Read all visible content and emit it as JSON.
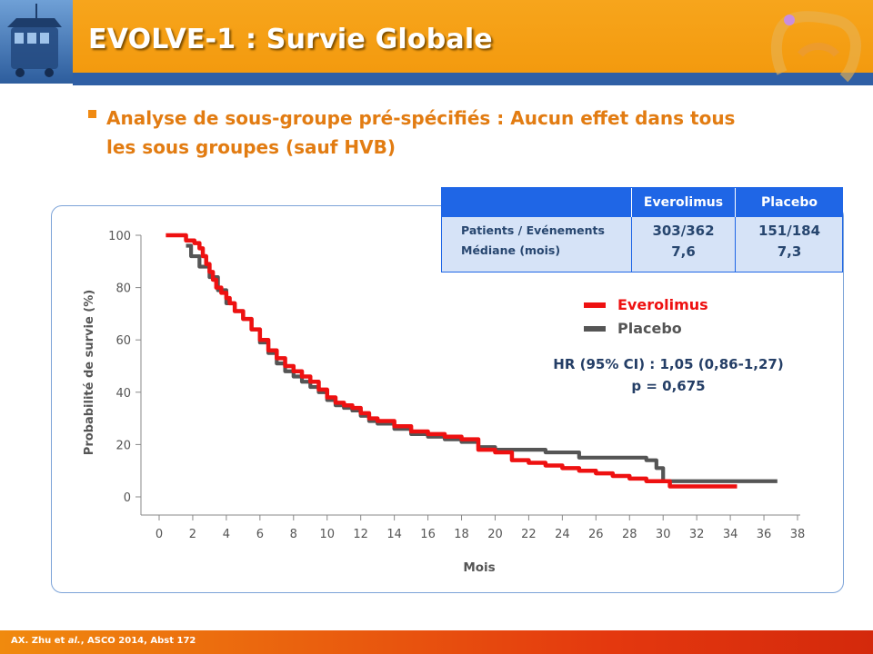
{
  "header": {
    "title": "EVOLVE-1 : Survie Globale"
  },
  "subtitle": {
    "line1": "Analyse de sous-groupe pré-spécifiés : Aucun effet dans tous",
    "line2": "les sous groupes (sauf HVB)"
  },
  "table": {
    "headers": [
      "",
      "Everolimus",
      "Placebo"
    ],
    "row_labels": [
      "Patients / Evénements",
      "Médiane (mois)"
    ],
    "everolimus": [
      "303/362",
      "7,6"
    ],
    "placebo": [
      "151/184",
      "7,3"
    ]
  },
  "legend": {
    "everolimus": "Everolimus",
    "placebo": "Placebo"
  },
  "stats": {
    "hr": "HR (95% CI) : 1,05 (0,86-1,27)",
    "p": "p = 0,675"
  },
  "footer": {
    "citation_prefix": "AX. Zhu et ",
    "citation_italic": "al.",
    "citation_suffix": ", ASCO 2014,  Abst 172"
  },
  "colors": {
    "everolimus": "#ee1111",
    "placebo": "#555555",
    "header_orange": "#f39a0e",
    "header_blue": "#2f5fa5",
    "table_header": "#1f66e6",
    "table_body": "#d6e3f7"
  },
  "chart_data": {
    "type": "line",
    "step": true,
    "xlabel": "Mois",
    "ylabel": "Probabilité de survie (%)",
    "xlim": [
      0,
      38
    ],
    "ylim": [
      0,
      100
    ],
    "xticks": [
      0,
      2,
      4,
      6,
      8,
      10,
      12,
      14,
      16,
      18,
      20,
      22,
      24,
      26,
      28,
      30,
      32,
      34,
      36,
      38
    ],
    "yticks": [
      0,
      20,
      40,
      60,
      80,
      100
    ],
    "grid": false,
    "legend_position": "right",
    "series": [
      {
        "name": "Everolimus",
        "color": "#ee1111",
        "x": [
          0.4,
          1.4,
          1.6,
          2.1,
          2.4,
          2.6,
          2.8,
          3.0,
          3.2,
          3.4,
          3.7,
          4.0,
          4.2,
          4.5,
          5.0,
          5.5,
          6.0,
          6.5,
          7.0,
          7.5,
          8.0,
          8.5,
          9.0,
          9.5,
          10.0,
          10.5,
          11.0,
          11.5,
          12.0,
          12.5,
          13.0,
          14.0,
          15.0,
          16.0,
          17.0,
          18.0,
          19.0,
          20.0,
          21.0,
          22.0,
          23.0,
          24.0,
          25.0,
          26.0,
          27.0,
          28.0,
          29.0,
          30.0,
          30.4,
          31.0,
          32.0,
          34.4
        ],
        "y": [
          100,
          100,
          98,
          97,
          95,
          92,
          89,
          86,
          83,
          80,
          78,
          76,
          74,
          71,
          68,
          64,
          60,
          56,
          53,
          50,
          48,
          46,
          44,
          41,
          38,
          36,
          35,
          34,
          32,
          30,
          29,
          27,
          25,
          24,
          23,
          22,
          18,
          17,
          14,
          13,
          12,
          11,
          10,
          9,
          8,
          7,
          6,
          6,
          4,
          4,
          4,
          4
        ]
      },
      {
        "name": "Placebo",
        "color": "#555555",
        "x": [
          1.6,
          1.9,
          2.4,
          3.0,
          3.5,
          4.0,
          4.5,
          5.0,
          5.5,
          6.0,
          6.5,
          7.0,
          7.5,
          8.0,
          8.5,
          9.0,
          9.5,
          10.0,
          10.5,
          11.0,
          11.5,
          12.0,
          12.5,
          13.0,
          14.0,
          15.0,
          16.0,
          17.0,
          18.0,
          19.0,
          20.0,
          23.0,
          25.0,
          27.0,
          29.0,
          29.6,
          30.0,
          33.0,
          36.8
        ],
        "y": [
          96,
          92,
          88,
          84,
          79,
          74,
          71,
          68,
          64,
          59,
          55,
          51,
          48,
          46,
          44,
          42,
          40,
          37,
          35,
          34,
          33,
          31,
          29,
          28,
          26,
          24,
          23,
          22,
          21,
          19,
          18,
          17,
          15,
          15,
          14,
          11,
          6,
          6,
          6
        ]
      }
    ]
  }
}
